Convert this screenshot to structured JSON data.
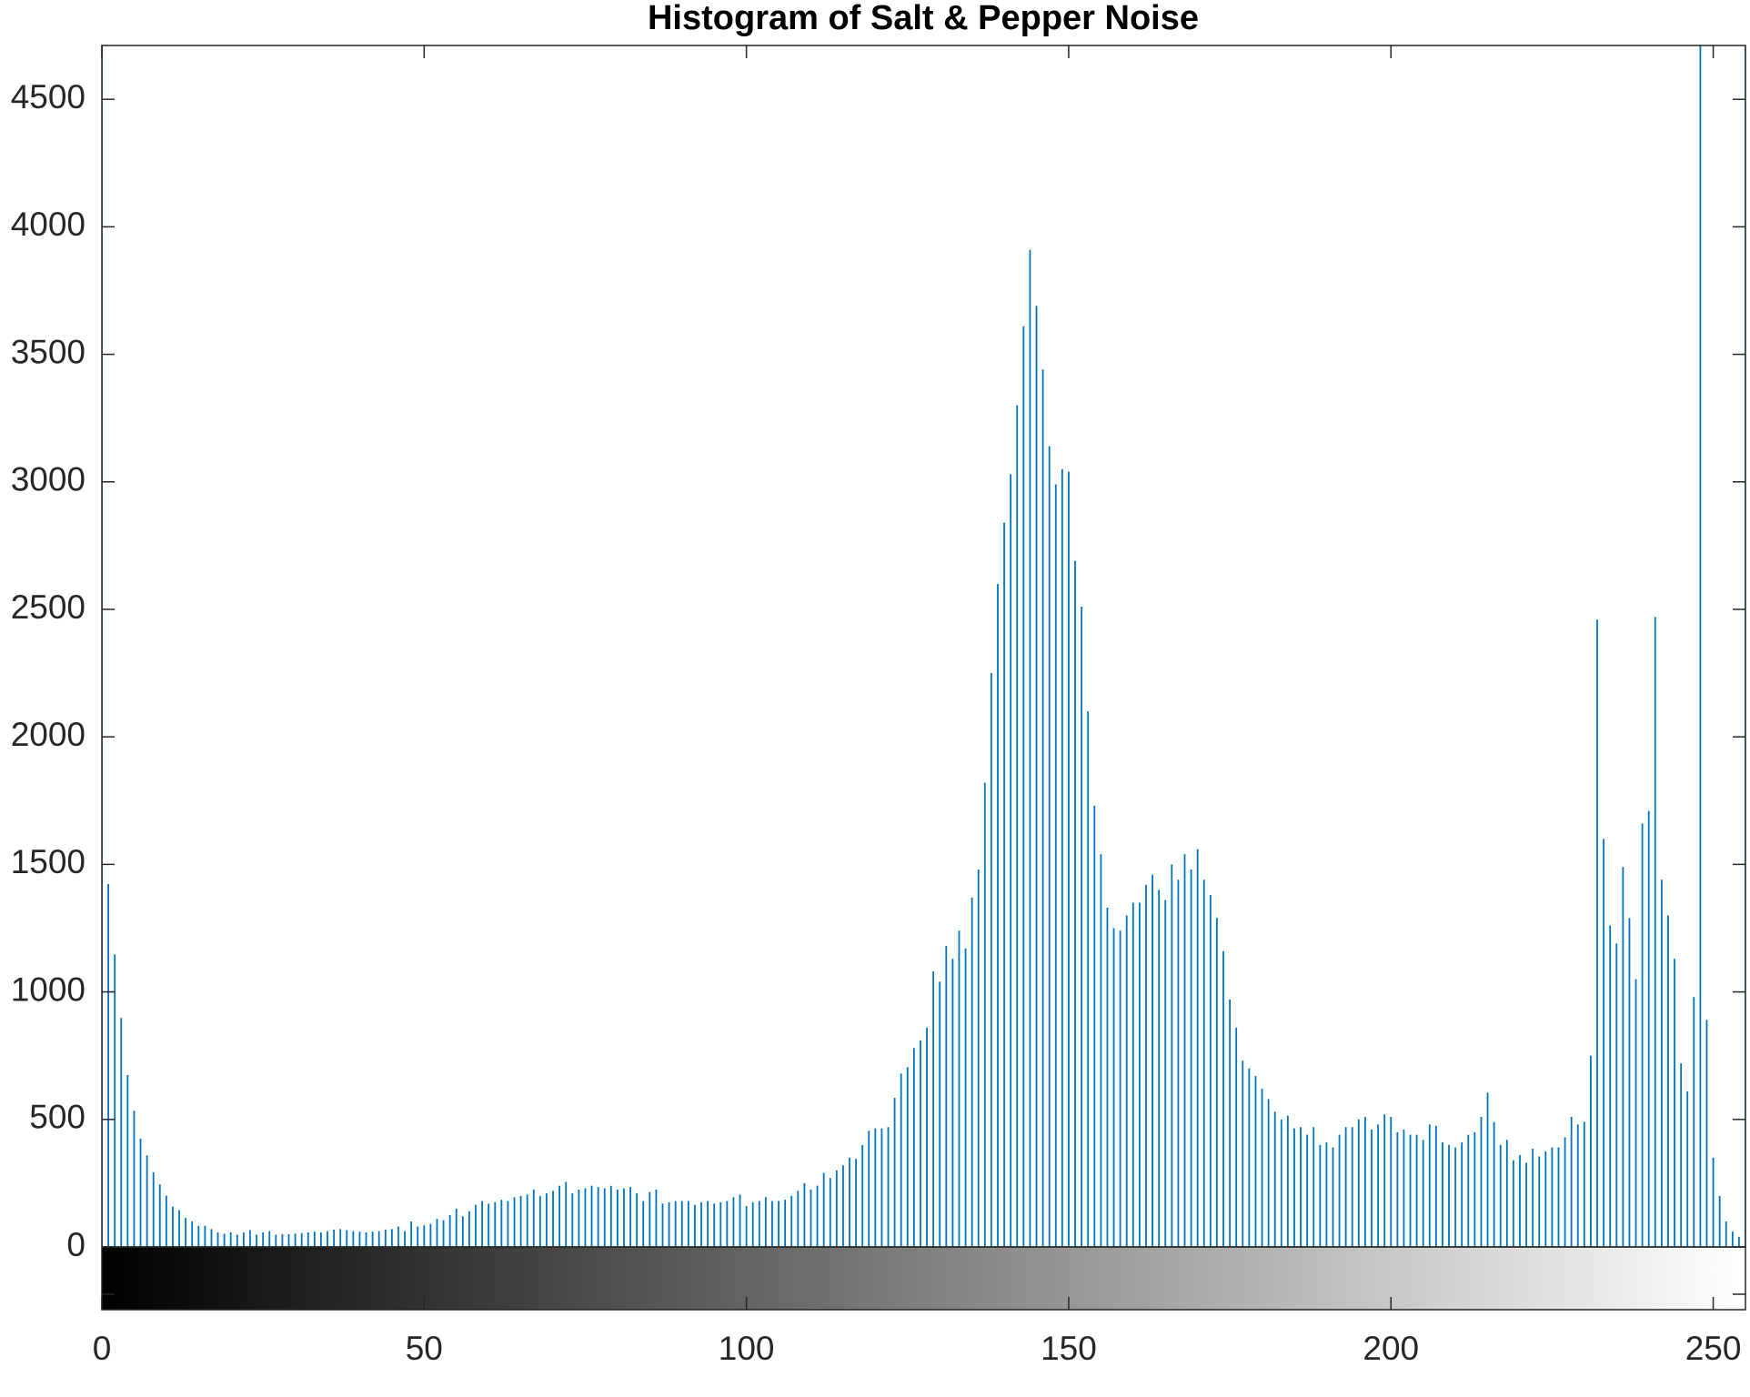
{
  "chart_data": {
    "type": "stem",
    "title": "Histogram of Salt & Pepper Noise",
    "color": "#0072bd",
    "x": [
      0,
      1,
      2,
      3,
      4,
      5,
      6,
      7,
      8,
      9,
      10,
      11,
      12,
      13,
      14,
      15,
      16,
      17,
      18,
      19,
      20,
      21,
      22,
      23,
      24,
      25,
      26,
      27,
      28,
      29,
      30,
      31,
      32,
      33,
      34,
      35,
      36,
      37,
      38,
      39,
      40,
      41,
      42,
      43,
      44,
      45,
      46,
      47,
      48,
      49,
      50,
      51,
      52,
      53,
      54,
      55,
      56,
      57,
      58,
      59,
      60,
      61,
      62,
      63,
      64,
      65,
      66,
      67,
      68,
      69,
      70,
      71,
      72,
      73,
      74,
      75,
      76,
      77,
      78,
      79,
      80,
      81,
      82,
      83,
      84,
      85,
      86,
      87,
      88,
      89,
      90,
      91,
      92,
      93,
      94,
      95,
      96,
      97,
      98,
      99,
      100,
      101,
      102,
      103,
      104,
      105,
      106,
      107,
      108,
      109,
      110,
      111,
      112,
      113,
      114,
      115,
      116,
      117,
      118,
      119,
      120,
      121,
      122,
      123,
      124,
      125,
      126,
      127,
      128,
      129,
      130,
      131,
      132,
      133,
      134,
      135,
      136,
      137,
      138,
      139,
      140,
      141,
      142,
      143,
      144,
      145,
      146,
      147,
      148,
      149,
      150,
      151,
      152,
      153,
      154,
      155,
      156,
      157,
      158,
      159,
      160,
      161,
      162,
      163,
      164,
      165,
      166,
      167,
      168,
      169,
      170,
      171,
      172,
      173,
      174,
      175,
      176,
      177,
      178,
      179,
      180,
      181,
      182,
      183,
      184,
      185,
      186,
      187,
      188,
      189,
      190,
      191,
      192,
      193,
      194,
      195,
      196,
      197,
      198,
      199,
      200,
      201,
      202,
      203,
      204,
      205,
      206,
      207,
      208,
      209,
      210,
      211,
      212,
      213,
      214,
      215,
      216,
      217,
      218,
      219,
      220,
      221,
      222,
      223,
      224,
      225,
      226,
      227,
      228,
      229,
      230,
      231,
      232,
      233,
      234,
      235,
      236,
      237,
      238,
      239,
      240,
      241,
      242,
      243,
      244,
      245,
      246,
      247,
      248,
      249,
      250,
      251,
      252,
      253,
      254,
      255
    ],
    "values": [
      5500,
      1423,
      1147,
      898,
      674,
      534,
      425,
      359,
      293,
      245,
      201,
      158,
      144,
      114,
      100,
      83,
      83,
      70,
      57,
      52,
      57,
      48,
      57,
      66,
      48,
      57,
      62,
      48,
      50,
      50,
      52,
      55,
      57,
      60,
      57,
      62,
      68,
      70,
      66,
      62,
      60,
      57,
      60,
      62,
      68,
      70,
      80,
      62,
      100,
      80,
      85,
      90,
      110,
      105,
      125,
      150,
      120,
      140,
      165,
      180,
      170,
      175,
      185,
      180,
      195,
      200,
      205,
      225,
      200,
      210,
      220,
      240,
      255,
      210,
      225,
      230,
      240,
      235,
      230,
      240,
      225,
      230,
      235,
      210,
      180,
      215,
      225,
      170,
      175,
      180,
      180,
      180,
      165,
      175,
      180,
      170,
      175,
      180,
      195,
      205,
      160,
      175,
      180,
      195,
      180,
      180,
      185,
      200,
      220,
      250,
      225,
      240,
      290,
      270,
      300,
      320,
      350,
      345,
      400,
      455,
      465,
      465,
      470,
      585,
      680,
      705,
      780,
      810,
      860,
      1080,
      1040,
      1180,
      1130,
      1240,
      1170,
      1370,
      1480,
      1820,
      2250,
      2600,
      2840,
      3030,
      3300,
      3610,
      3910,
      3690,
      3440,
      3140,
      2990,
      3050,
      3040,
      2690,
      2510,
      2100,
      1730,
      1540,
      1330,
      1250,
      1240,
      1300,
      1350,
      1350,
      1420,
      1460,
      1400,
      1360,
      1500,
      1440,
      1540,
      1480,
      1560,
      1440,
      1380,
      1290,
      1160,
      970,
      860,
      730,
      700,
      670,
      620,
      580,
      530,
      500,
      515,
      465,
      470,
      440,
      470,
      400,
      410,
      390,
      440,
      470,
      470,
      500,
      510,
      460,
      480,
      520,
      510,
      450,
      460,
      440,
      440,
      420,
      480,
      475,
      410,
      400,
      390,
      410,
      440,
      450,
      510,
      605,
      490,
      400,
      420,
      340,
      360,
      330,
      385,
      355,
      375,
      390,
      390,
      430,
      510,
      480,
      490,
      750,
      2460,
      1600,
      1260,
      1190,
      1490,
      1290,
      1050,
      1660,
      1710,
      2470,
      1440,
      1300,
      1130,
      720,
      610,
      980,
      4900,
      890,
      350,
      200,
      100,
      60,
      40,
      5500
    ],
    "xlim": [
      0,
      255
    ],
    "xticks": [
      0,
      50,
      100,
      150,
      200,
      250
    ],
    "ylim": [
      0,
      4711
    ],
    "yticks": [
      0,
      500,
      1000,
      1500,
      2000,
      2500,
      3000,
      3500,
      4000,
      4500
    ]
  }
}
